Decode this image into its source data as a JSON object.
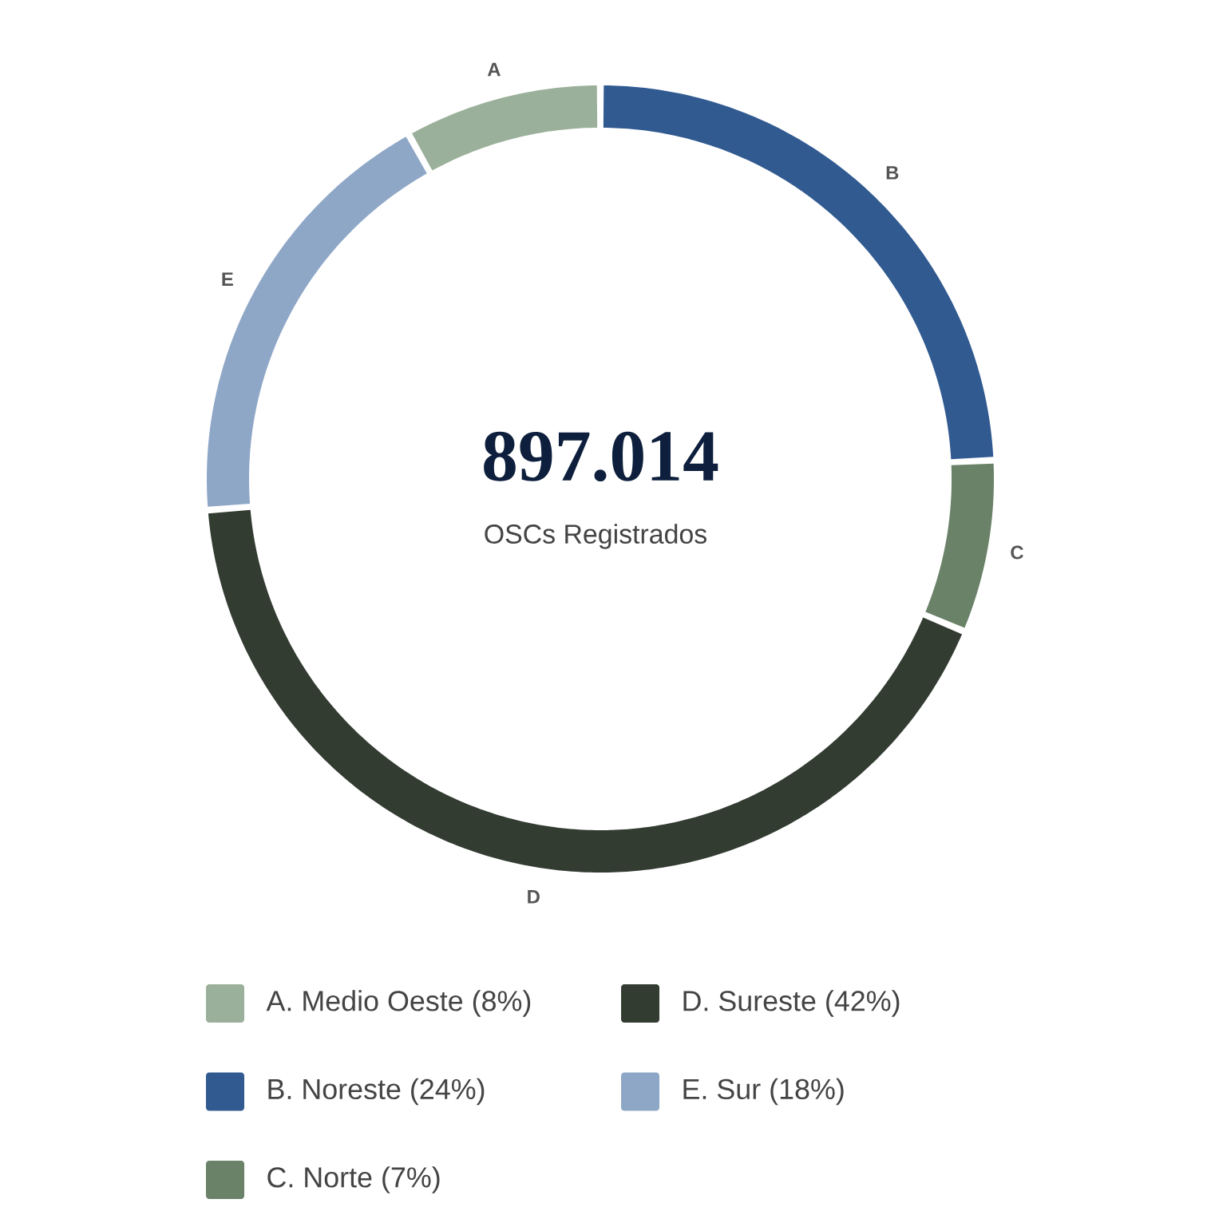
{
  "chart_data": {
    "type": "donut",
    "title": "897.014",
    "subtitle": "OSCs Registrados",
    "categories": [
      "A. Medio Oeste (8%)",
      "B. Noreste (24%)",
      "C. Norte (7%)",
      "D. Sureste (42%)",
      "E. Sur (18%)"
    ],
    "values": [
      8,
      24,
      7,
      42,
      18
    ],
    "colors": [
      "#9bb09b",
      "#315a91",
      "#6a8268",
      "#323c31",
      "#8fa7c7"
    ],
    "annotations": [
      "A",
      "B",
      "C",
      "D",
      "E"
    ],
    "legend": "bottom"
  }
}
